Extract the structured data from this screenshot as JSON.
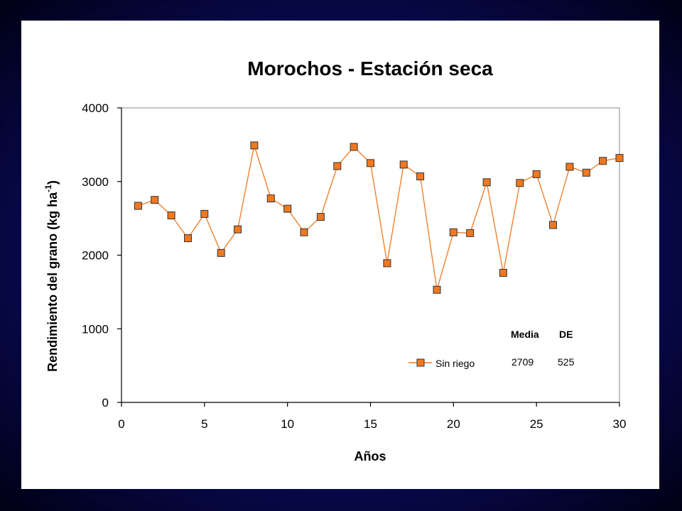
{
  "chart_data": {
    "type": "line",
    "title": "Morochos - Estación seca",
    "xlabel": "Años",
    "ylabel_main": "Rendimiento del grano (kg ha",
    "ylabel_sup": "-1",
    "ylabel_end": ")",
    "xlim": [
      0,
      30
    ],
    "ylim": [
      0,
      4000
    ],
    "xticks": [
      0,
      5,
      10,
      15,
      20,
      25,
      30
    ],
    "yticks": [
      0,
      1000,
      2000,
      3000,
      4000
    ],
    "grid": false,
    "legend_position": "bottom-right",
    "series": [
      {
        "name": "Sin riego",
        "color": "#f07820",
        "x": [
          1,
          2,
          3,
          4,
          5,
          6,
          7,
          8,
          9,
          10,
          11,
          12,
          13,
          14,
          15,
          16,
          17,
          18,
          19,
          20,
          21,
          22,
          23,
          24,
          25,
          26,
          27,
          28,
          29,
          30
        ],
        "y": [
          2670,
          2750,
          2540,
          2230,
          2560,
          2030,
          2350,
          3490,
          2770,
          2630,
          2310,
          2520,
          3210,
          3470,
          3250,
          1890,
          3230,
          3070,
          1530,
          2310,
          2300,
          2990,
          1760,
          2980,
          3100,
          2410,
          3200,
          3120,
          3280,
          3320
        ]
      }
    ],
    "stats": {
      "mean_header": "Media",
      "sd_header": "DE",
      "mean_value": "2709",
      "sd_value": "525"
    }
  }
}
